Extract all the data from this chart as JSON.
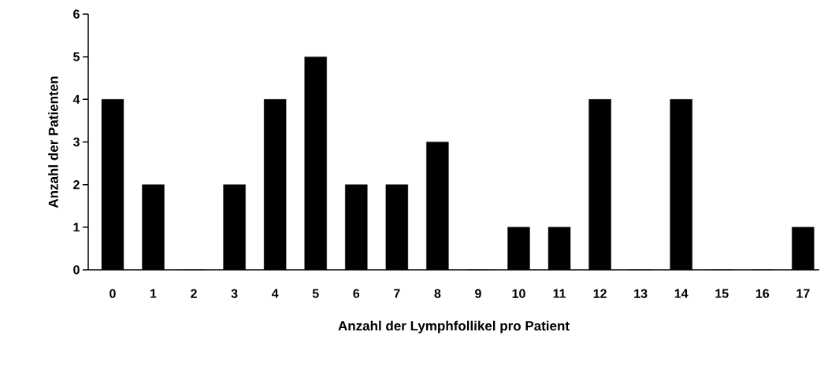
{
  "chart_data": {
    "type": "bar",
    "xlabel": "Anzahl der Lymphfollikel pro Patient",
    "ylabel": "Anzahl der Patienten",
    "categories": [
      "0",
      "1",
      "2",
      "3",
      "4",
      "5",
      "6",
      "7",
      "8",
      "9",
      "10",
      "11",
      "12",
      "13",
      "14",
      "15",
      "16",
      "17"
    ],
    "values": [
      4,
      2,
      0,
      2,
      4,
      5,
      2,
      2,
      3,
      0,
      1,
      1,
      4,
      0,
      4,
      0,
      0,
      1
    ],
    "color": "#000000",
    "ylim": [
      0,
      6
    ],
    "yticks": [
      0,
      1,
      2,
      3,
      4,
      5,
      6
    ]
  }
}
